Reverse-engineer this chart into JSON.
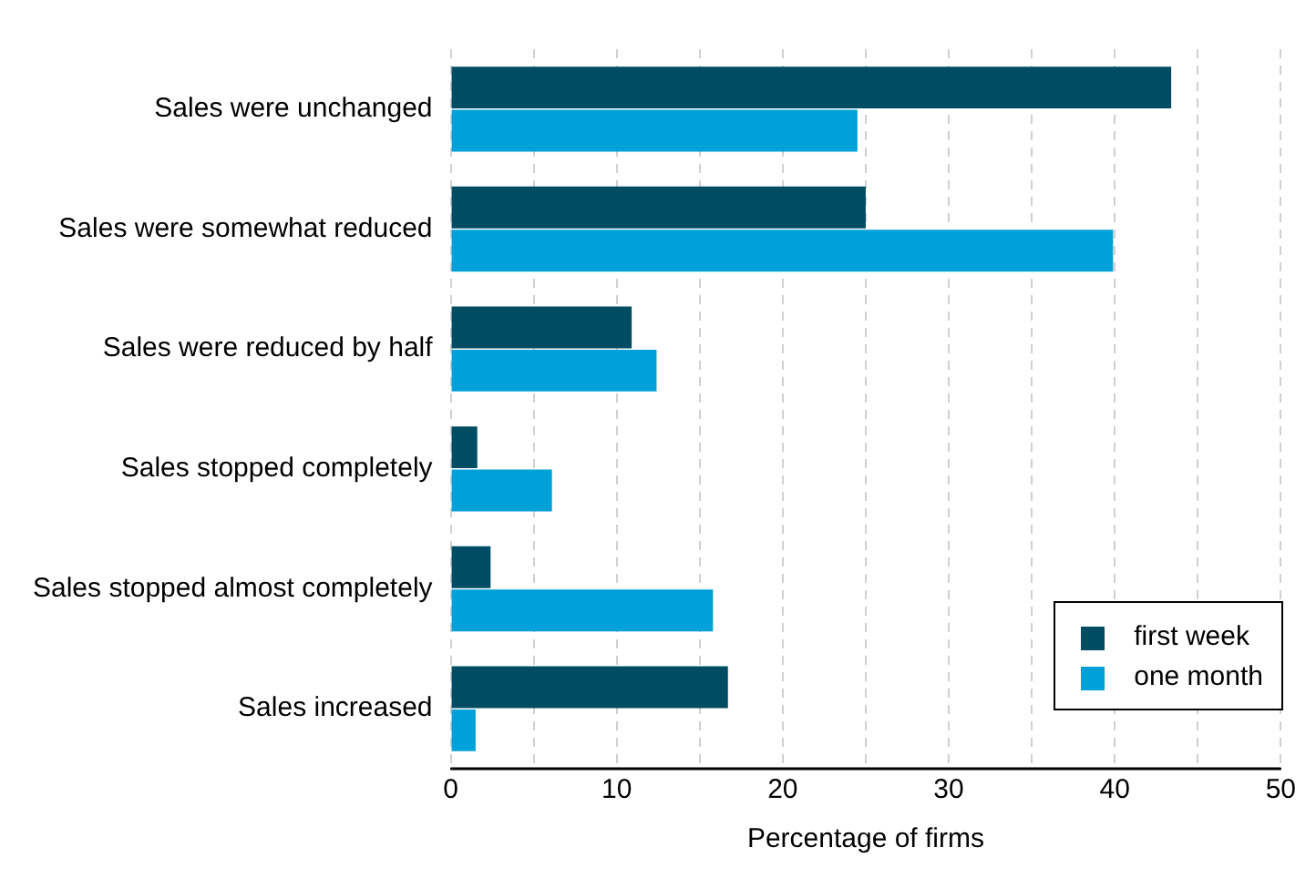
{
  "chart_data": {
    "type": "bar",
    "orientation": "horizontal",
    "xlabel": "Percentage of firms",
    "categories": [
      "Sales were unchanged",
      "Sales were somewhat reduced",
      "Sales were reduced by half",
      "Sales stopped completely",
      "Sales stopped almost completely",
      "Sales increased"
    ],
    "series": [
      {
        "name": "first week",
        "color": "#004c63",
        "values": [
          43.4,
          25.0,
          10.9,
          1.6,
          2.4,
          16.7
        ]
      },
      {
        "name": "one month",
        "color": "#00a1d9",
        "values": [
          24.5,
          39.9,
          12.4,
          6.1,
          15.8,
          1.5
        ]
      }
    ],
    "xlim": [
      0,
      50
    ],
    "xticks": [
      0,
      {
        "value": 5,
        "label": null
      },
      10,
      {
        "value": 15,
        "label": null
      },
      20,
      {
        "value": 25,
        "label": null
      },
      30,
      {
        "value": 35,
        "label": null
      },
      40,
      {
        "value": 45,
        "label": null
      },
      50
    ],
    "grid": "x",
    "legend": "bottom right"
  }
}
